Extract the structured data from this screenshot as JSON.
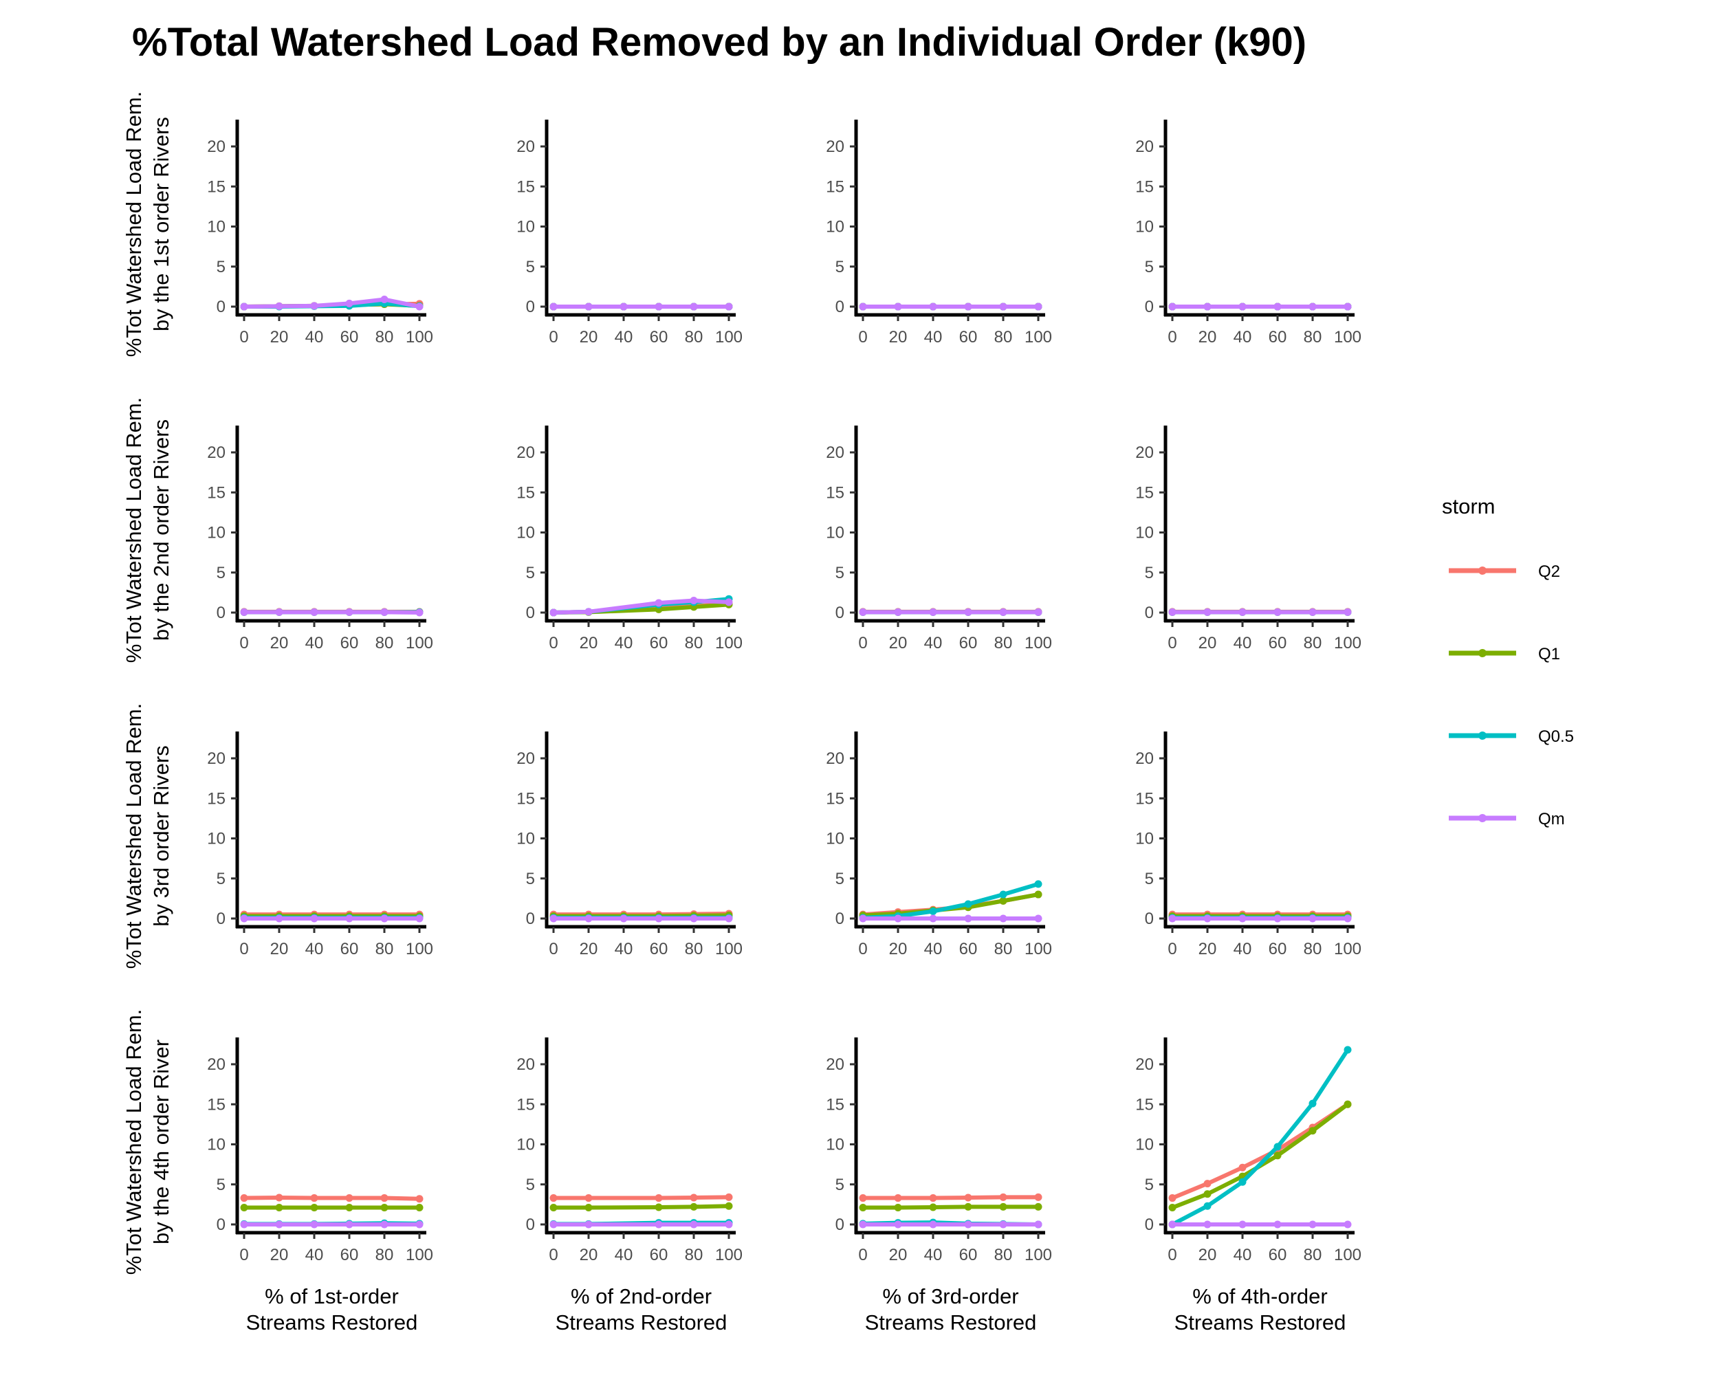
{
  "chart_data": {
    "type": "line",
    "title": "%Total Watershed Load Removed by an Individual Order (k90)",
    "x": [
      0,
      20,
      40,
      60,
      80,
      100
    ],
    "xticks": [
      "0",
      "20",
      "40",
      "60",
      "80",
      "100"
    ],
    "yticks": [
      "0",
      "5",
      "10",
      "15",
      "20"
    ],
    "ylim": [
      -1,
      23
    ],
    "xlim": [
      -5,
      105
    ],
    "grid": false,
    "legend": {
      "title": "storm",
      "position": "right",
      "entries": [
        {
          "name": "Q2",
          "color": "#F8766D"
        },
        {
          "name": "Q1",
          "color": "#7CAE00"
        },
        {
          "name": "Q0.5",
          "color": "#00BFC4"
        },
        {
          "name": "Qm",
          "color": "#C77CFF"
        }
      ]
    },
    "row_labels": [
      [
        "%Tot Watershed Load Rem.",
        "by the 1st order Rivers"
      ],
      [
        "%Tot Watershed Load Rem.",
        "by the 2nd order Rivers"
      ],
      [
        "%Tot Watershed Load Rem.",
        "by 3rd order Rivers"
      ],
      [
        "%Tot Watershed Load Rem.",
        "by the 4th order River"
      ]
    ],
    "col_labels": [
      [
        "% of 1st-order",
        "Streams Restored"
      ],
      [
        "% of 2nd-order",
        "Streams Restored"
      ],
      [
        "% of 3rd-order",
        "Streams Restored"
      ],
      [
        "% of 4th-order",
        "Streams Restored"
      ]
    ],
    "panels": [
      [
        {
          "series": [
            {
              "name": "Q2",
              "values": [
                0.0,
                0.05,
                0.1,
                0.2,
                0.3,
                0.35
              ]
            },
            {
              "name": "Q1",
              "values": [
                0.0,
                0.05,
                0.1,
                0.2,
                0.3,
                0.1
              ]
            },
            {
              "name": "Q0.5",
              "values": [
                0.0,
                0.0,
                0.05,
                0.1,
                0.4,
                0.05
              ]
            },
            {
              "name": "Qm",
              "values": [
                0.0,
                0.05,
                0.1,
                0.4,
                0.9,
                0.0
              ]
            }
          ]
        },
        {
          "series": [
            {
              "name": "Q2",
              "values": [
                0,
                0,
                0,
                0,
                0,
                0
              ]
            },
            {
              "name": "Q1",
              "values": [
                0,
                0,
                0,
                0,
                0,
                0
              ]
            },
            {
              "name": "Q0.5",
              "values": [
                0,
                0,
                0,
                0,
                0,
                0
              ]
            },
            {
              "name": "Qm",
              "values": [
                0,
                0,
                0,
                0,
                0,
                0
              ]
            }
          ]
        },
        {
          "series": [
            {
              "name": "Q2",
              "values": [
                0,
                0,
                0,
                0,
                0,
                0
              ]
            },
            {
              "name": "Q1",
              "values": [
                0,
                0,
                0,
                0,
                0,
                0
              ]
            },
            {
              "name": "Q0.5",
              "values": [
                0,
                0,
                0,
                0,
                0,
                0
              ]
            },
            {
              "name": "Qm",
              "values": [
                0,
                0,
                0,
                0,
                0,
                0
              ]
            }
          ]
        },
        {
          "series": [
            {
              "name": "Q2",
              "values": [
                0,
                0,
                0,
                0,
                0,
                0
              ]
            },
            {
              "name": "Q1",
              "values": [
                0,
                0,
                0,
                0,
                0,
                0
              ]
            },
            {
              "name": "Q0.5",
              "values": [
                0,
                0,
                0,
                0,
                0,
                0
              ]
            },
            {
              "name": "Qm",
              "values": [
                0,
                0,
                0,
                0,
                0,
                0
              ]
            }
          ]
        }
      ],
      [
        {
          "series": [
            {
              "name": "Q2",
              "values": [
                0.1,
                0.1,
                0.1,
                0.1,
                0.1,
                0.1
              ]
            },
            {
              "name": "Q1",
              "values": [
                0.05,
                0.05,
                0.05,
                0.05,
                0.05,
                0.05
              ]
            },
            {
              "name": "Q0.5",
              "values": [
                0.05,
                0.05,
                0.05,
                0.05,
                0.05,
                0.05
              ]
            },
            {
              "name": "Qm",
              "values": [
                0.05,
                0.05,
                0.05,
                0.05,
                0.05,
                0.0
              ]
            }
          ]
        },
        {
          "series": [
            {
              "name": "Q2",
              "values": [
                0.0,
                0.1,
                null,
                0.5,
                0.8,
                1.1
              ]
            },
            {
              "name": "Q1",
              "values": [
                0.0,
                0.05,
                null,
                0.4,
                0.7,
                1.0
              ]
            },
            {
              "name": "Q0.5",
              "values": [
                0.0,
                0.1,
                null,
                1.0,
                1.3,
                1.7
              ]
            },
            {
              "name": "Qm",
              "values": [
                0.0,
                0.1,
                null,
                1.2,
                1.5,
                1.3
              ]
            }
          ]
        },
        {
          "series": [
            {
              "name": "Q2",
              "values": [
                0.1,
                0.1,
                0.1,
                0.1,
                0.1,
                0.1
              ]
            },
            {
              "name": "Q1",
              "values": [
                0.05,
                0.05,
                0.05,
                0.05,
                0.05,
                0.05
              ]
            },
            {
              "name": "Q0.5",
              "values": [
                0.05,
                0.05,
                0.05,
                0.05,
                0.05,
                0.05
              ]
            },
            {
              "name": "Qm",
              "values": [
                0.05,
                0.05,
                0.05,
                0.05,
                0.05,
                0.05
              ]
            }
          ]
        },
        {
          "series": [
            {
              "name": "Q2",
              "values": [
                0.1,
                0.1,
                0.1,
                0.1,
                0.1,
                0.1
              ]
            },
            {
              "name": "Q1",
              "values": [
                0.05,
                0.05,
                0.05,
                0.05,
                0.05,
                0.05
              ]
            },
            {
              "name": "Q0.5",
              "values": [
                0.05,
                0.05,
                0.05,
                0.05,
                0.05,
                0.05
              ]
            },
            {
              "name": "Qm",
              "values": [
                0.05,
                0.05,
                0.05,
                0.05,
                0.05,
                0.05
              ]
            }
          ]
        }
      ],
      [
        {
          "series": [
            {
              "name": "Q2",
              "values": [
                0.5,
                0.5,
                0.5,
                0.5,
                0.5,
                0.5
              ]
            },
            {
              "name": "Q1",
              "values": [
                0.3,
                0.3,
                0.3,
                0.3,
                0.3,
                0.3
              ]
            },
            {
              "name": "Q0.5",
              "values": [
                0.1,
                0.1,
                0.1,
                0.1,
                0.1,
                0.1
              ]
            },
            {
              "name": "Qm",
              "values": [
                0.0,
                0.0,
                0.0,
                0.0,
                0.0,
                0.0
              ]
            }
          ]
        },
        {
          "series": [
            {
              "name": "Q2",
              "values": [
                0.5,
                0.5,
                0.5,
                0.5,
                0.55,
                0.6
              ]
            },
            {
              "name": "Q1",
              "values": [
                0.3,
                0.3,
                0.3,
                0.3,
                0.35,
                0.4
              ]
            },
            {
              "name": "Q0.5",
              "values": [
                0.1,
                0.1,
                0.1,
                0.1,
                0.1,
                0.1
              ]
            },
            {
              "name": "Qm",
              "values": [
                0.0,
                0.0,
                0.0,
                0.0,
                0.0,
                0.0
              ]
            }
          ]
        },
        {
          "series": [
            {
              "name": "Q2",
              "values": [
                0.5,
                0.8,
                1.1,
                1.5,
                2.2,
                3.0
              ]
            },
            {
              "name": "Q1",
              "values": [
                0.4,
                0.6,
                1.0,
                1.4,
                2.2,
                3.0
              ]
            },
            {
              "name": "Q0.5",
              "values": [
                0.1,
                0.3,
                0.9,
                1.8,
                3.0,
                4.3
              ]
            },
            {
              "name": "Qm",
              "values": [
                0.0,
                0.0,
                0.0,
                0.0,
                0.0,
                0.0
              ]
            }
          ]
        },
        {
          "series": [
            {
              "name": "Q2",
              "values": [
                0.5,
                0.5,
                0.5,
                0.5,
                0.5,
                0.5
              ]
            },
            {
              "name": "Q1",
              "values": [
                0.3,
                0.3,
                0.3,
                0.3,
                0.3,
                0.3
              ]
            },
            {
              "name": "Q0.5",
              "values": [
                0.1,
                0.1,
                0.1,
                0.1,
                0.1,
                0.1
              ]
            },
            {
              "name": "Qm",
              "values": [
                0.0,
                0.0,
                0.0,
                0.0,
                0.0,
                0.0
              ]
            }
          ]
        }
      ],
      [
        {
          "series": [
            {
              "name": "Q2",
              "values": [
                3.3,
                3.35,
                3.3,
                3.3,
                3.3,
                3.2
              ]
            },
            {
              "name": "Q1",
              "values": [
                2.1,
                2.1,
                2.1,
                2.1,
                2.1,
                2.1
              ]
            },
            {
              "name": "Q0.5",
              "values": [
                0.05,
                0.05,
                0.05,
                0.1,
                0.15,
                0.1
              ]
            },
            {
              "name": "Qm",
              "values": [
                0.0,
                0.0,
                0.0,
                0.0,
                0.0,
                0.0
              ]
            }
          ]
        },
        {
          "series": [
            {
              "name": "Q2",
              "values": [
                3.3,
                3.3,
                null,
                3.3,
                3.35,
                3.4
              ]
            },
            {
              "name": "Q1",
              "values": [
                2.1,
                2.1,
                null,
                2.15,
                2.2,
                2.3
              ]
            },
            {
              "name": "Q0.5",
              "values": [
                0.05,
                0.05,
                null,
                0.2,
                0.2,
                0.2
              ]
            },
            {
              "name": "Qm",
              "values": [
                0.0,
                0.0,
                null,
                0.0,
                0.0,
                0.0
              ]
            }
          ]
        },
        {
          "series": [
            {
              "name": "Q2",
              "values": [
                3.3,
                3.3,
                3.3,
                3.35,
                3.4,
                3.4
              ]
            },
            {
              "name": "Q1",
              "values": [
                2.1,
                2.1,
                2.15,
                2.2,
                2.2,
                2.2
              ]
            },
            {
              "name": "Q0.5",
              "values": [
                0.1,
                0.2,
                0.25,
                0.1,
                0.05,
                0.0
              ]
            },
            {
              "name": "Qm",
              "values": [
                0.0,
                0.0,
                0.0,
                0.0,
                0.0,
                0.0
              ]
            }
          ]
        },
        {
          "series": [
            {
              "name": "Q2",
              "values": [
                3.3,
                5.1,
                7.1,
                9.3,
                12.1,
                15.0
              ]
            },
            {
              "name": "Q1",
              "values": [
                2.1,
                3.8,
                6.0,
                8.6,
                11.7,
                15.0
              ]
            },
            {
              "name": "Q0.5",
              "values": [
                0.0,
                2.3,
                5.3,
                9.7,
                15.1,
                21.8
              ]
            },
            {
              "name": "Qm",
              "values": [
                0.0,
                0.0,
                0.0,
                0.0,
                0.0,
                0.0
              ]
            }
          ]
        }
      ]
    ]
  }
}
